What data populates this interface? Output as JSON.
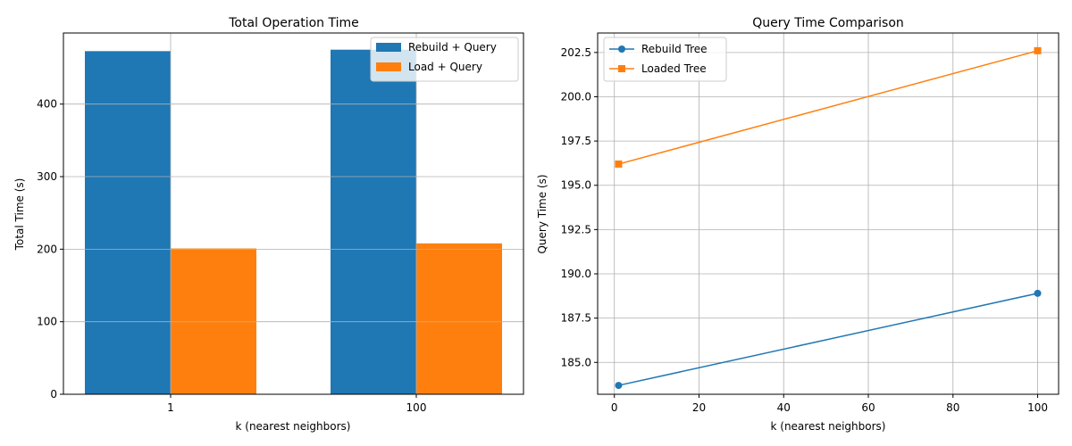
{
  "chart_data": [
    {
      "type": "bar",
      "title": "Total Operation Time",
      "xlabel": "k (nearest neighbors)",
      "ylabel": "Total Time (s)",
      "categories": [
        "1",
        "100"
      ],
      "series": [
        {
          "name": "Rebuild + Query",
          "values": [
            473,
            475
          ]
        },
        {
          "name": "Load + Query",
          "values": [
            201,
            208
          ]
        }
      ],
      "ylim": [
        0,
        498
      ],
      "yticks": [
        0,
        100,
        200,
        300,
        400
      ],
      "grid": true,
      "legend": "top-right",
      "colors": [
        "#1f77b4",
        "#ff7f0e"
      ]
    },
    {
      "type": "line",
      "title": "Query Time Comparison",
      "xlabel": "k (nearest neighbors)",
      "ylabel": "Query Time (s)",
      "x": [
        1,
        100
      ],
      "series": [
        {
          "name": "Rebuild Tree",
          "values": [
            183.7,
            188.9
          ],
          "marker": "circle"
        },
        {
          "name": "Loaded Tree",
          "values": [
            196.2,
            202.6
          ],
          "marker": "square"
        }
      ],
      "xlim": [
        -3.95,
        104.95
      ],
      "ylim": [
        183.2,
        203.6
      ],
      "xticks": [
        0,
        20,
        40,
        60,
        80,
        100
      ],
      "yticks": [
        185.0,
        187.5,
        190.0,
        192.5,
        195.0,
        197.5,
        200.0,
        202.5
      ],
      "grid": true,
      "legend": "top-left",
      "colors": [
        "#1f77b4",
        "#ff7f0e"
      ]
    }
  ]
}
